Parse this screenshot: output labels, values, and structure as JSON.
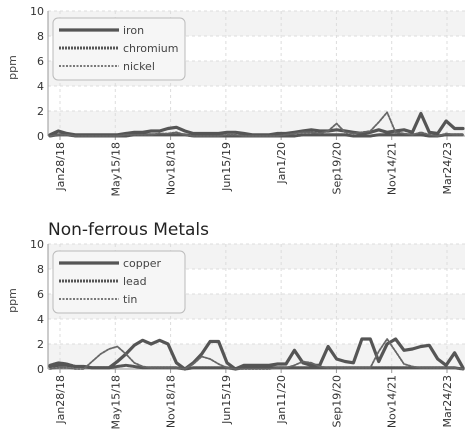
{
  "chart_data": [
    {
      "type": "line",
      "title": "",
      "ylabel": "ppm",
      "ylim": [
        0,
        10
      ],
      "yticks": [
        "0",
        "2",
        "4",
        "6",
        "8",
        "10"
      ],
      "xticks": [
        "Jan28/18",
        "May15/18",
        "Nov18/18",
        "Jun15/19",
        "Jan1/20",
        "Sep19/20",
        "Nov14/21",
        "Mar24/23"
      ],
      "legend_position": "top-left",
      "grid": true,
      "series": [
        {
          "name": "iron",
          "style": "solid",
          "color": "#555555",
          "values": [
            0.1,
            0.4,
            0.2,
            0.1,
            0.1,
            0.1,
            0.1,
            0.1,
            0.1,
            0.2,
            0.3,
            0.3,
            0.4,
            0.4,
            0.6,
            0.7,
            0.4,
            0.2,
            0.2,
            0.2,
            0.2,
            0.3,
            0.3,
            0.2,
            0.1,
            0.1,
            0.1,
            0.2,
            0.2,
            0.3,
            0.4,
            0.5,
            0.4,
            0.4,
            0.5,
            0.4,
            0.3,
            0.2,
            0.3,
            0.5,
            0.3,
            0.4,
            0.5,
            0.3,
            1.8,
            0.3,
            0.2,
            1.2,
            0.6,
            0.6
          ]
        },
        {
          "name": "chromium",
          "style": "dashed",
          "color": "#555555",
          "values": [
            0,
            0.1,
            0.1,
            0,
            0,
            0,
            0,
            0,
            0,
            0,
            0.1,
            0.1,
            0.1,
            0.1,
            0.1,
            0.1,
            0.1,
            0,
            0,
            0,
            0,
            0,
            0,
            0,
            0,
            0,
            0,
            0,
            0,
            0,
            0.1,
            0.1,
            0.1,
            0.1,
            0.1,
            0.1,
            0,
            0,
            0,
            0.1,
            0.1,
            0.1,
            0.1,
            0.1,
            0.1,
            0,
            0,
            0.1,
            0.1,
            0.1
          ]
        },
        {
          "name": "nickel",
          "style": "dotted",
          "color": "#666666",
          "values": [
            0,
            0.1,
            0.1,
            0,
            0,
            0,
            0,
            0,
            0,
            0.1,
            0.1,
            0.1,
            0.1,
            0.2,
            0.2,
            0.3,
            0.1,
            0,
            0,
            0,
            0,
            0.1,
            0.1,
            0,
            0,
            0,
            0,
            0,
            0.1,
            0.2,
            0.3,
            0.3,
            0.2,
            0.4,
            1.0,
            0.3,
            0.2,
            0.3,
            0.4,
            1.1,
            1.9,
            0.3,
            0.2,
            0.1,
            0.3,
            0.1,
            0,
            0.2,
            0.1,
            0.1
          ]
        }
      ]
    },
    {
      "type": "line",
      "title": "Non-ferrous Metals",
      "ylabel": "ppm",
      "ylim": [
        0,
        10
      ],
      "yticks": [
        "0",
        "2",
        "4",
        "6",
        "8",
        "10"
      ],
      "xticks": [
        "Jan28/18",
        "May15/18",
        "Nov18/18",
        "Jun15/19",
        "Jan11/20",
        "Sep19/20",
        "Nov14/21",
        "Mar24/23"
      ],
      "legend_position": "top-left",
      "grid": true,
      "series": [
        {
          "name": "copper",
          "style": "solid",
          "color": "#555555",
          "values": [
            0.2,
            0.3,
            0.3,
            0.2,
            0.2,
            0.1,
            0.1,
            0.1,
            0.6,
            1.2,
            1.9,
            2.3,
            2.0,
            2.3,
            2.0,
            0.5,
            0,
            0.5,
            1.2,
            2.2,
            2.2,
            0.5,
            0,
            0.3,
            0.3,
            0.3,
            0.3,
            0.4,
            0.4,
            1.5,
            0.5,
            0.3,
            0.3,
            1.8,
            0.8,
            0.6,
            0.5,
            2.4,
            2.4,
            0.6,
            2.0,
            2.4,
            1.5,
            1.6,
            1.8,
            1.9,
            0.8,
            0.3,
            1.3,
            0.1
          ]
        },
        {
          "name": "lead",
          "style": "dashed",
          "color": "#555555",
          "values": [
            0.3,
            0.5,
            0.4,
            0.2,
            0.2,
            0.1,
            0.1,
            0.1,
            0.2,
            0.3,
            0.2,
            0.1,
            0.1,
            0.1,
            0.1,
            0.1,
            0,
            0.1,
            0.1,
            0.1,
            0.1,
            0.1,
            0,
            0.1,
            0.1,
            0.1,
            0.1,
            0.1,
            0.1,
            0.1,
            0.1,
            0.1,
            0.1,
            0.1,
            0.1,
            0.1,
            0.1,
            0.1,
            0.1,
            0.1,
            0.1,
            0.1,
            0.1,
            0.1,
            0.1,
            0.1,
            0.1,
            0.1,
            0.1,
            0
          ]
        },
        {
          "name": "tin",
          "style": "dotted",
          "color": "#666666",
          "values": [
            0,
            0.1,
            0.1,
            0,
            0,
            0.6,
            1.2,
            1.6,
            1.8,
            1.2,
            0.5,
            0.2,
            0.1,
            0.1,
            0.1,
            0.1,
            0,
            0.4,
            1.0,
            0.8,
            0.4,
            0.1,
            0,
            0,
            0,
            0,
            0,
            0.1,
            0.1,
            0.3,
            0.6,
            0.5,
            0.2,
            0.1,
            0.1,
            0.1,
            0.1,
            0.1,
            0.1,
            1.4,
            2.4,
            1.4,
            0.4,
            0.2,
            0.1,
            0.1,
            0.1,
            0.1,
            0.1,
            0
          ]
        }
      ]
    }
  ]
}
